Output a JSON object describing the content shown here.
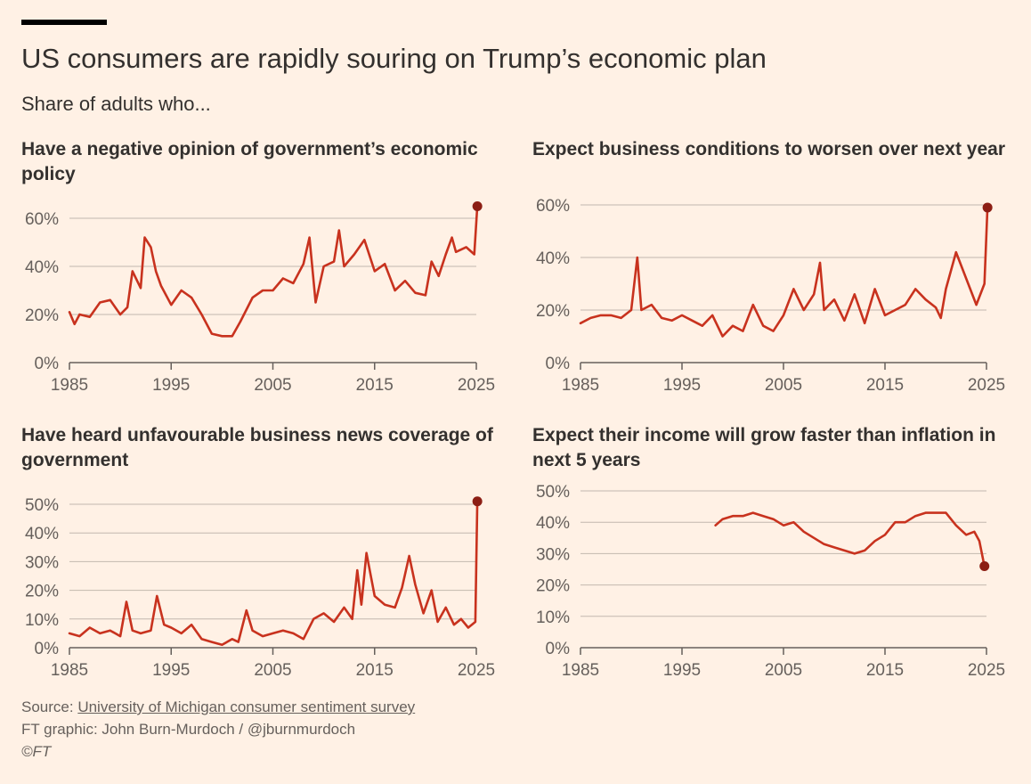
{
  "title": "US consumers are rapidly souring on Trump’s economic plan",
  "subtitle": "Share of adults who...",
  "colors": {
    "line": "#C8321E",
    "endpoint": "#8C1E14",
    "grid": "#C2B8AE",
    "axis": "#66605C",
    "background": "#FFF1E5"
  },
  "footer": {
    "source_prefix": "Source: ",
    "source_link": "University of Michigan consumer sentiment survey",
    "credit": "FT graphic: John Burn-Murdoch / @jburnmurdoch",
    "copyright": "©FT"
  },
  "chart_data": [
    {
      "type": "line",
      "title": "Have a negative opinion of government’s economic policy",
      "xlim": [
        1985,
        2025
      ],
      "ylim": [
        0,
        60
      ],
      "xticks": [
        1985,
        1995,
        2005,
        2015,
        2025
      ],
      "yticks": [
        0,
        20,
        40,
        60
      ],
      "ytick_labels": [
        "0%",
        "20%",
        "40%",
        "60%"
      ],
      "endpoint": [
        2025.1,
        65
      ],
      "x": [
        1985,
        1985.5,
        1986,
        1987,
        1988,
        1989,
        1990,
        1990.7,
        1991.2,
        1992,
        1992.4,
        1993,
        1993.5,
        1994,
        1995,
        1996,
        1997,
        1998,
        1999,
        2000,
        2001,
        2001.8,
        2003,
        2004,
        2005,
        2006,
        2007,
        2008,
        2008.6,
        2009.2,
        2010,
        2011,
        2011.5,
        2012,
        2013,
        2014,
        2015,
        2016,
        2017,
        2018,
        2019,
        2020,
        2020.6,
        2021.3,
        2022,
        2022.6,
        2023,
        2024,
        2024.8,
        2025.1
      ],
      "y": [
        21,
        16,
        20,
        19,
        25,
        26,
        20,
        23,
        38,
        31,
        52,
        48,
        38,
        32,
        24,
        30,
        27,
        20,
        12,
        11,
        11,
        17,
        27,
        30,
        30,
        35,
        33,
        41,
        52,
        25,
        40,
        42,
        55,
        40,
        45,
        51,
        38,
        41,
        30,
        34,
        29,
        28,
        42,
        36,
        45,
        52,
        46,
        48,
        45,
        65
      ]
    },
    {
      "type": "line",
      "title": "Expect business conditions to worsen over next year",
      "xlim": [
        1985,
        2025
      ],
      "ylim": [
        0,
        60
      ],
      "xticks": [
        1985,
        1995,
        2005,
        2015,
        2025
      ],
      "yticks": [
        0,
        20,
        40,
        60
      ],
      "ytick_labels": [
        "0%",
        "20%",
        "40%",
        "60%"
      ],
      "endpoint": [
        2025.1,
        59
      ],
      "x": [
        1985,
        1986,
        1987,
        1988,
        1989,
        1990,
        1990.6,
        1991,
        1992,
        1993,
        1994,
        1995,
        1996,
        1997,
        1998,
        1999,
        2000,
        2001,
        2002,
        2003,
        2004,
        2005,
        2006,
        2007,
        2008,
        2008.6,
        2009,
        2010,
        2011,
        2012,
        2013,
        2014,
        2015,
        2016,
        2017,
        2018,
        2019,
        2020,
        2020.5,
        2021,
        2022,
        2023,
        2024,
        2024.8,
        2025.1
      ],
      "y": [
        15,
        17,
        18,
        18,
        17,
        20,
        40,
        20,
        22,
        17,
        16,
        18,
        16,
        14,
        18,
        10,
        14,
        12,
        22,
        14,
        12,
        18,
        28,
        20,
        26,
        38,
        20,
        24,
        16,
        26,
        15,
        28,
        18,
        20,
        22,
        28,
        24,
        21,
        17,
        28,
        42,
        32,
        22,
        30,
        59
      ]
    },
    {
      "type": "line",
      "title": "Have heard unfavourable business news coverage of government",
      "xlim": [
        1985,
        2025
      ],
      "ylim": [
        0,
        50
      ],
      "xticks": [
        1985,
        1995,
        2005,
        2015,
        2025
      ],
      "yticks": [
        0,
        10,
        20,
        30,
        40,
        50
      ],
      "ytick_labels": [
        "0%",
        "10%",
        "20%",
        "30%",
        "40%",
        "50%"
      ],
      "endpoint": [
        2025.1,
        51
      ],
      "x": [
        1985,
        1986,
        1987,
        1988,
        1989,
        1990,
        1990.6,
        1991.2,
        1992,
        1993,
        1993.6,
        1994.3,
        1995,
        1996,
        1997,
        1998,
        1999,
        2000,
        2001,
        2001.6,
        2002.4,
        2003,
        2004,
        2005,
        2006,
        2007,
        2008,
        2009,
        2010,
        2011,
        2012,
        2012.8,
        2013.3,
        2013.7,
        2014.2,
        2015,
        2016,
        2017,
        2017.7,
        2018.4,
        2019,
        2019.8,
        2020.6,
        2021.2,
        2022,
        2022.8,
        2023.5,
        2024.2,
        2024.9,
        2025.1
      ],
      "y": [
        5,
        4,
        7,
        5,
        6,
        4,
        16,
        6,
        5,
        6,
        18,
        8,
        7,
        5,
        8,
        3,
        2,
        1,
        3,
        2,
        13,
        6,
        4,
        5,
        6,
        5,
        3,
        10,
        12,
        9,
        14,
        10,
        27,
        15,
        33,
        18,
        15,
        14,
        21,
        32,
        22,
        12,
        20,
        9,
        14,
        8,
        10,
        7,
        9,
        51
      ]
    },
    {
      "type": "line",
      "title": "Expect their income will grow faster than inflation in next 5 years",
      "xlim": [
        1985,
        2025
      ],
      "ylim": [
        0,
        50
      ],
      "xticks": [
        1985,
        1995,
        2005,
        2015,
        2025
      ],
      "yticks": [
        0,
        10,
        20,
        30,
        40,
        50
      ],
      "ytick_labels": [
        "0%",
        "10%",
        "20%",
        "30%",
        "40%",
        "50%"
      ],
      "endpoint": [
        2024.8,
        26
      ],
      "x": [
        1998.3,
        1999,
        2000,
        2001,
        2002,
        2003,
        2004,
        2005,
        2006,
        2007,
        2008,
        2009,
        2010,
        2011,
        2012,
        2013,
        2014,
        2015,
        2016,
        2017,
        2018,
        2019,
        2020,
        2021,
        2022,
        2023,
        2023.8,
        2024.3,
        2024.8
      ],
      "y": [
        39,
        41,
        42,
        42,
        43,
        42,
        41,
        39,
        40,
        37,
        35,
        33,
        32,
        31,
        30,
        31,
        34,
        36,
        40,
        40,
        42,
        43,
        43,
        43,
        39,
        36,
        37,
        34,
        26
      ]
    }
  ]
}
